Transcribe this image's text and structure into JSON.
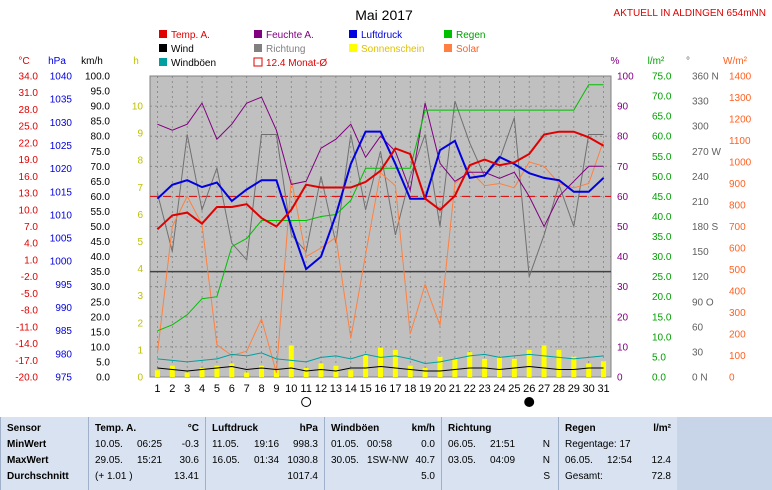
{
  "chart_data": {
    "type": "line",
    "title": "Mai 2017",
    "station_label": "AKTUELL IN ALDINGEN 654mNN",
    "x": [
      1,
      2,
      3,
      4,
      5,
      6,
      7,
      8,
      9,
      10,
      11,
      12,
      13,
      14,
      15,
      16,
      17,
      18,
      19,
      20,
      21,
      22,
      23,
      24,
      25,
      26,
      27,
      28,
      29,
      30,
      31
    ],
    "axes": {
      "temp_c": {
        "unit": "°C",
        "ticks": [
          "34.0",
          "31.0",
          "28.0",
          "25.0",
          "22.0",
          "19.0",
          "16.0",
          "13.0",
          "10.0",
          "7.0",
          "4.0",
          "1.0",
          "-2.0",
          "-5.0",
          "-8.0",
          "-11.0",
          "-14.0",
          "-17.0",
          "-20.0"
        ],
        "range": [
          -20,
          34
        ]
      },
      "pressure_hpa": {
        "unit": "hPa",
        "ticks": [
          "1040",
          "1035",
          "1030",
          "1025",
          "1020",
          "1015",
          "1010",
          "1005",
          "1000",
          "995",
          "990",
          "985",
          "980",
          "975"
        ],
        "range": [
          975,
          1040
        ]
      },
      "wind_kmh": {
        "unit": "km/h",
        "ticks": [
          "100.0",
          "95.0",
          "90.0",
          "85.0",
          "80.0",
          "75.0",
          "70.0",
          "65.0",
          "60.0",
          "55.0",
          "50.0",
          "45.0",
          "40.0",
          "35.0",
          "30.0",
          "25.0",
          "20.0",
          "15.0",
          "10.0",
          "5.0",
          "0.0"
        ],
        "range": [
          0,
          100
        ]
      },
      "sun_h": {
        "unit": "h",
        "ticks": [
          "10",
          "9",
          "8",
          "7",
          "6",
          "5",
          "4",
          "3",
          "2",
          "1",
          "0"
        ],
        "range": [
          0,
          10
        ]
      },
      "humidity_pct": {
        "unit": "%",
        "ticks": [
          "100",
          "90",
          "80",
          "70",
          "60",
          "50",
          "40",
          "30",
          "20",
          "10",
          "0"
        ],
        "range": [
          0,
          100
        ]
      },
      "rain_lm2": {
        "unit": "l/m²",
        "ticks": [
          "75.0",
          "70.0",
          "65.0",
          "60.0",
          "55.0",
          "50.0",
          "45.0",
          "40.0",
          "35.0",
          "30.0",
          "25.0",
          "20.0",
          "15.0",
          "10.0",
          "5.0",
          "0.0"
        ],
        "range": [
          0,
          75
        ]
      },
      "direction": {
        "unit": "°",
        "ticks": [
          "360 N",
          "330",
          "300",
          "270 W",
          "240",
          "210",
          "180 S",
          "150",
          "120",
          "90 O",
          "60",
          "30",
          "0 N"
        ],
        "range": [
          0,
          360
        ]
      },
      "solar_wm2": {
        "unit": "W/m²",
        "ticks": [
          "1400",
          "1300",
          "1200",
          "1100",
          "1000",
          "900",
          "800",
          "700",
          "600",
          "500",
          "400",
          "300",
          "200",
          "100",
          "0"
        ],
        "range": [
          0,
          1400
        ]
      }
    },
    "legend": [
      {
        "label": "Temp. A.",
        "color": "#e00000"
      },
      {
        "label": "Feuchte A.",
        "color": "#800080"
      },
      {
        "label": "Luftdruck",
        "color": "#0000e0"
      },
      {
        "label": "Regen",
        "color": "#00c000"
      },
      {
        "label": "Wind",
        "color": "#000000"
      },
      {
        "label": "Richtung",
        "color": "#808080"
      },
      {
        "label": "Sonnenschein",
        "color": "#ffff00"
      },
      {
        "label": "Solar",
        "color": "#ff8040"
      },
      {
        "label": "Windböen",
        "color": "#00a0a0"
      },
      {
        "label": "12.4 Monat-Ø",
        "color": "#e00000"
      }
    ],
    "month_avg_temp_c": 12.4,
    "series": [
      {
        "name": "Temp. A.",
        "axis": "temp_c",
        "values": [
          6.5,
          9.0,
          9.5,
          7.5,
          10.5,
          10.5,
          11.0,
          8.5,
          7.0,
          10.0,
          14.5,
          14.0,
          14.0,
          14.0,
          15.0,
          17.0,
          21.0,
          20.0,
          12.0,
          10.0,
          12.5,
          18.0,
          19.0,
          18.0,
          18.5,
          20.0,
          23.5,
          24.0,
          24.0,
          23.0,
          21.5
        ]
      },
      {
        "name": "Feuchte A.",
        "axis": "humidity_pct",
        "values": [
          84,
          82,
          84,
          91,
          79,
          84,
          91,
          93,
          82,
          64,
          65,
          76,
          79,
          84,
          73,
          80,
          75,
          62,
          91,
          71,
          65,
          68,
          68,
          66,
          68,
          60,
          50,
          60,
          65,
          70,
          70
        ]
      },
      {
        "name": "Luftdruck",
        "axis": "pressure_hpa",
        "values": [
          1013.5,
          1016.5,
          1017.5,
          1016.0,
          1017.0,
          1013.0,
          1015.5,
          1017.5,
          1017.5,
          1007.5,
          998.3,
          1001.0,
          1010.0,
          1021.0,
          1028.0,
          1028.0,
          1021.0,
          1013.5,
          1013.5,
          1024.0,
          1026.0,
          1018.0,
          1018.5,
          1022.5,
          1021.0,
          1019.0,
          1018.0,
          1017.5,
          1015.0,
          1015.0,
          1018.0
        ]
      },
      {
        "name": "Regen",
        "axis": "rain_lm2",
        "values": [
          11.5,
          13.0,
          15.5,
          19.5,
          20.0,
          32.5,
          34.5,
          39.0,
          39.0,
          39.0,
          39.0,
          40.0,
          40.5,
          44.0,
          52.0,
          52.0,
          52.0,
          52.0,
          66.5,
          66.5,
          66.5,
          66.5,
          66.5,
          66.5,
          66.5,
          66.5,
          66.5,
          66.5,
          66.5,
          72.8,
          72.8
        ]
      },
      {
        "name": "Wind",
        "axis": "wind_kmh",
        "values": [
          3.0,
          2.5,
          2.0,
          2.5,
          3.0,
          3.5,
          2.5,
          3.0,
          2.5,
          3.0,
          2.0,
          2.5,
          2.0,
          3.0,
          3.0,
          3.5,
          3.0,
          2.5,
          2.0,
          2.0,
          2.5,
          3.0,
          3.0,
          2.5,
          3.0,
          3.5,
          3.0,
          2.5,
          2.5,
          3.0,
          3.0
        ]
      },
      {
        "name": "Windböen",
        "axis": "wind_kmh",
        "values": [
          6.0,
          5.5,
          5.0,
          5.5,
          6.0,
          7.5,
          7.0,
          8.0,
          6.0,
          5.5,
          5.0,
          6.5,
          7.0,
          6.0,
          7.5,
          6.5,
          7.0,
          6.0,
          4.5,
          5.0,
          6.0,
          7.0,
          7.5,
          6.5,
          7.0,
          7.5,
          7.0,
          6.5,
          6.0,
          6.5,
          7.0
        ]
      },
      {
        "name": "Richtung",
        "axis": "direction",
        "values": [
          220,
          150,
          290,
          200,
          250,
          160,
          140,
          290,
          290,
          170,
          150,
          240,
          160,
          290,
          200,
          270,
          170,
          240,
          290,
          180,
          330,
          280,
          240,
          260,
          310,
          120,
          170,
          230,
          180,
          290,
          290
        ]
      },
      {
        "name": "Sonnenschein",
        "axis": "sun_h",
        "values": [
          0.3,
          0.5,
          0.2,
          0.4,
          0.5,
          0.6,
          0.2,
          0.5,
          0.3,
          1.4,
          0.4,
          0.6,
          0.5,
          0.3,
          1.0,
          1.3,
          1.2,
          0.5,
          0.4,
          0.9,
          0.8,
          1.1,
          0.8,
          0.9,
          0.8,
          1.2,
          1.4,
          1.2,
          0.9,
          0.6,
          0.7
        ]
      },
      {
        "name": "Solar",
        "axis": "solar_wm2",
        "values": [
          110,
          700,
          840,
          710,
          150,
          100,
          120,
          270,
          20,
          920,
          560,
          600,
          650,
          180,
          570,
          950,
          890,
          200,
          430,
          240,
          900,
          960,
          890,
          900,
          880,
          1000,
          980,
          900,
          880,
          900,
          1100
        ]
      }
    ]
  },
  "xaxis_ticks": [
    "1",
    "2",
    "3",
    "4",
    "5",
    "6",
    "7",
    "8",
    "9",
    "10",
    "11",
    "12",
    "13",
    "14",
    "15",
    "16",
    "17",
    "18",
    "19",
    "20",
    "21",
    "22",
    "23",
    "24",
    "25",
    "26",
    "27",
    "28",
    "29",
    "30",
    "31"
  ],
  "moon": {
    "full_day": 11,
    "new_day": 26
  },
  "stats": {
    "headers": {
      "sensor": "Sensor",
      "temp": "Temp. A.",
      "temp_unit": "°C",
      "pressure": "Luftdruck",
      "pressure_unit": "hPa",
      "gust": "Windböen",
      "gust_unit": "km/h",
      "direction": "Richtung",
      "rain": "Regen",
      "rain_unit": "l/m²"
    },
    "rows": [
      "MinWert",
      "MaxWert",
      "Durchschnitt"
    ],
    "temp": [
      [
        "10.05.",
        "06:25",
        "-0.3"
      ],
      [
        "29.05.",
        "15:21",
        "30.6"
      ],
      [
        "(+ 1.01 )",
        "",
        "13.41"
      ]
    ],
    "pressure": [
      [
        "11.05.",
        "19:16",
        "998.3"
      ],
      [
        "16.05.",
        "01:34",
        "1030.8"
      ],
      [
        "",
        "",
        "1017.4"
      ]
    ],
    "gust": [
      [
        "01.05.",
        "00:58",
        "0.0"
      ],
      [
        "30.05.",
        "1SW-NW",
        "40.7"
      ],
      [
        "",
        "",
        "5.0"
      ]
    ],
    "direction": [
      [
        "06.05.",
        "21:51",
        "N"
      ],
      [
        "03.05.",
        "04:09",
        "N"
      ],
      [
        "",
        "",
        "S"
      ]
    ],
    "rain": [
      [
        "Regentage: 17",
        ""
      ],
      [
        "06.05.",
        "12:54",
        "12.4"
      ],
      [
        "Gesamt:",
        "",
        "72.8"
      ]
    ]
  }
}
